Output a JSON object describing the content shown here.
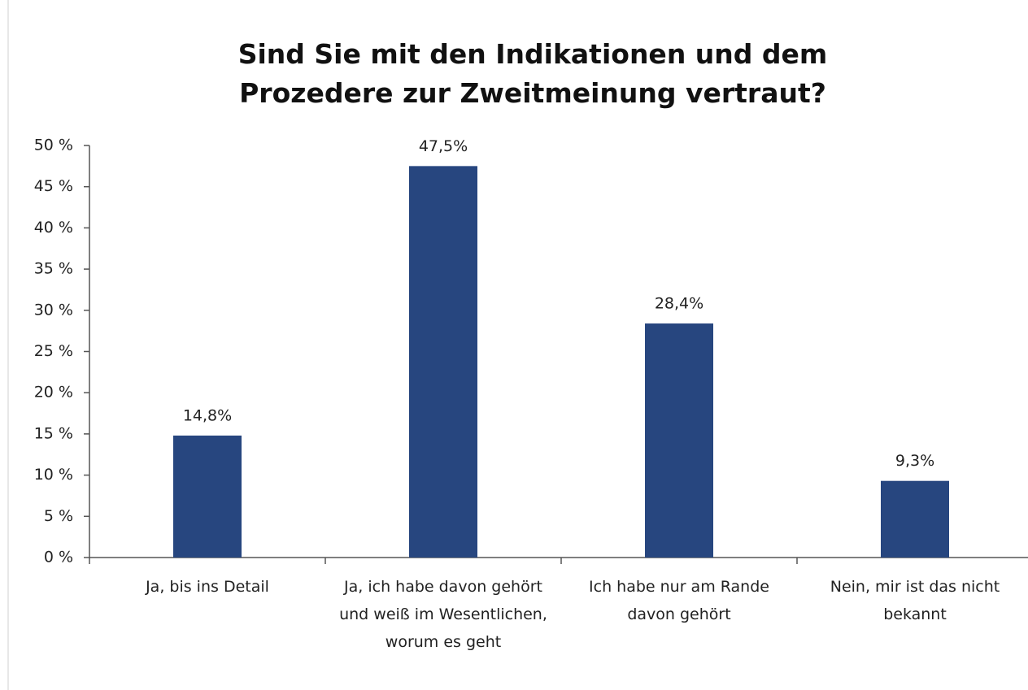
{
  "chart_data": {
    "type": "bar",
    "title": "Sind Sie mit den Indikationen und dem Prozedere zur Zweitmeinung vertraut?",
    "categories": [
      "Ja, bis ins Detail",
      "Ja, ich habe davon gehört und weiß im Wesentlichen, worum es geht",
      "Ich habe nur am Rande davon gehört",
      "Nein, mir ist das nicht bekannt"
    ],
    "values": [
      14.8,
      47.5,
      28.4,
      9.3
    ],
    "value_labels": [
      "14,8%",
      "47,5%",
      "28,4%",
      "9,3%"
    ],
    "color": "#27467f",
    "ylim": [
      0,
      50
    ],
    "yticks": [
      {
        "value": 0,
        "label": "0 %"
      },
      {
        "value": 5,
        "label": "5 %"
      },
      {
        "value": 10,
        "label": "10 %"
      },
      {
        "value": 15,
        "label": "15 %"
      },
      {
        "value": 20,
        "label": "20 %"
      },
      {
        "value": 25,
        "label": "25 %"
      },
      {
        "value": 30,
        "label": "30 %"
      },
      {
        "value": 35,
        "label": "35 %"
      },
      {
        "value": 40,
        "label": "40 %"
      },
      {
        "value": 45,
        "label": "45 %"
      },
      {
        "value": 50,
        "label": "50 %"
      }
    ]
  }
}
